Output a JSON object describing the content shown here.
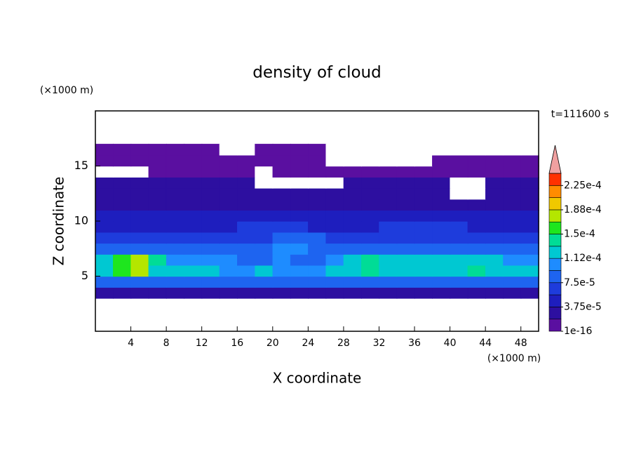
{
  "chart_data": {
    "type": "contour",
    "title": "density of cloud",
    "x_label": "X coordinate",
    "y_label": "Z coordinate",
    "x_unit": "(×1000 m)",
    "y_unit": "(×1000 m)",
    "time_label": "t=111600 s",
    "xlim": [
      0,
      50
    ],
    "ylim": [
      0,
      20
    ],
    "xticks": [
      4,
      8,
      12,
      16,
      20,
      24,
      28,
      32,
      36,
      40,
      44,
      48
    ],
    "yticks": [
      5,
      10,
      15
    ],
    "grid": false,
    "levels": [
      1e-16,
      1.875e-05,
      3.75e-05,
      5.625e-05,
      7.5e-05,
      9.375e-05,
      0.0001125,
      0.00013125,
      0.00015,
      0.00016875,
      0.0001875,
      0.00020625,
      0.000225,
      0.00024375
    ],
    "colors": [
      "#5a0fa0",
      "#2d0fa0",
      "#1e1ebe",
      "#1e3cdc",
      "#1e64f0",
      "#1e8cff",
      "#00c8d2",
      "#00dc96",
      "#1ee61e",
      "#b4e600",
      "#f0c800",
      "#ff8c00",
      "#ff3200"
    ],
    "extend_color": "#f0a0a0",
    "colorbar_ticks": [
      {
        "value": 1e-16,
        "label": "1e-16"
      },
      {
        "value": 3.75e-05,
        "label": "3.75e-5"
      },
      {
        "value": 7.5e-05,
        "label": "7.5e-5"
      },
      {
        "value": 0.0001125,
        "label": "1.12e-4"
      },
      {
        "value": 0.00015,
        "label": "1.5e-4"
      },
      {
        "value": 0.0001875,
        "label": "1.88e-4"
      },
      {
        "value": 0.000225,
        "label": "2.25e-4"
      }
    ],
    "x": [
      1,
      3,
      5,
      7,
      9,
      11,
      13,
      15,
      17,
      19,
      21,
      23,
      25,
      27,
      29,
      31,
      33,
      35,
      37,
      39,
      41,
      43,
      45,
      47,
      49
    ],
    "y": [
      3.5,
      4.5,
      5.5,
      6.5,
      7.5,
      8.5,
      9.5,
      10.5,
      11.5,
      12.5,
      13.5,
      14.5,
      15.5,
      16.5
    ],
    "z": [
      [
        3e-05,
        3e-05,
        3e-05,
        3e-05,
        3e-05,
        3e-05,
        3e-05,
        3e-05,
        3e-05,
        3e-05,
        3e-05,
        3e-05,
        3e-05,
        3e-05,
        3e-05,
        3e-05,
        3e-05,
        3e-05,
        3e-05,
        3e-05,
        3e-05,
        3e-05,
        3e-05,
        3e-05,
        3e-05
      ],
      [
        8e-05,
        8e-05,
        8e-05,
        8e-05,
        8e-05,
        8e-05,
        8e-05,
        8e-05,
        8e-05,
        8e-05,
        8e-05,
        8e-05,
        8e-05,
        8e-05,
        8e-05,
        8e-05,
        8e-05,
        8e-05,
        8e-05,
        8e-05,
        8e-05,
        8e-05,
        8e-05,
        8e-05,
        8e-05
      ],
      [
        0.00013,
        0.00015,
        0.00017,
        0.00013,
        0.00012,
        0.00012,
        0.00012,
        0.00011,
        0.00011,
        0.00012,
        0.00011,
        0.0001,
        0.00011,
        0.00012,
        0.00013,
        0.00014,
        0.00013,
        0.00013,
        0.00013,
        0.00013,
        0.00013,
        0.00014,
        0.00012,
        0.00012,
        0.00012
      ],
      [
        0.00012,
        0.00016,
        0.00018,
        0.00014,
        0.00011,
        0.00011,
        0.00011,
        0.0001,
        9e-05,
        9e-05,
        0.0001,
        9e-05,
        9e-05,
        0.00011,
        0.00013,
        0.00014,
        0.00013,
        0.00012,
        0.00012,
        0.00012,
        0.00013,
        0.00012,
        0.00012,
        0.00011,
        0.00011
      ],
      [
        8e-05,
        8e-05,
        8e-05,
        8e-05,
        8e-05,
        8e-05,
        8e-05,
        8e-05,
        8e-05,
        8e-05,
        0.0001,
        0.0001,
        8e-05,
        8e-05,
        8e-05,
        8e-05,
        8e-05,
        8e-05,
        8e-05,
        8e-05,
        8e-05,
        8e-05,
        8e-05,
        8e-05,
        8e-05
      ],
      [
        6e-05,
        6e-05,
        6e-05,
        6e-05,
        6e-05,
        6e-05,
        6e-05,
        6e-05,
        6e-05,
        6e-05,
        8e-05,
        8e-05,
        8e-05,
        6e-05,
        6e-05,
        6e-05,
        6e-05,
        6e-05,
        6e-05,
        6e-05,
        6e-05,
        6e-05,
        6e-05,
        6e-05,
        6e-05
      ],
      [
        4.5e-05,
        4.5e-05,
        4.5e-05,
        4.5e-05,
        4.5e-05,
        4.5e-05,
        4.5e-05,
        4.5e-05,
        6e-05,
        6e-05,
        6e-05,
        6e-05,
        4.5e-05,
        4.5e-05,
        4.5e-05,
        4.5e-05,
        6e-05,
        6e-05,
        6e-05,
        6e-05,
        6e-05,
        4.5e-05,
        4.5e-05,
        4.5e-05,
        4.5e-05
      ],
      [
        4e-05,
        4e-05,
        4e-05,
        4e-05,
        4e-05,
        4e-05,
        4e-05,
        4e-05,
        4e-05,
        4e-05,
        4e-05,
        4e-05,
        4e-05,
        4e-05,
        4e-05,
        4e-05,
        4e-05,
        4e-05,
        4e-05,
        4e-05,
        4e-05,
        4e-05,
        4e-05,
        4e-05,
        4e-05
      ],
      [
        3e-05,
        3e-05,
        3e-05,
        3e-05,
        3e-05,
        3e-05,
        3e-05,
        3e-05,
        3e-05,
        3e-05,
        3e-05,
        3e-05,
        3e-05,
        3e-05,
        3e-05,
        3e-05,
        3e-05,
        3e-05,
        3e-05,
        3e-05,
        3e-05,
        3e-05,
        3e-05,
        3e-05,
        3e-05
      ],
      [
        2.5e-05,
        2.5e-05,
        2.5e-05,
        2.5e-05,
        2.5e-05,
        2.5e-05,
        2.5e-05,
        2.5e-05,
        2.5e-05,
        2.5e-05,
        2.5e-05,
        2.5e-05,
        2.5e-05,
        2.5e-05,
        2.5e-05,
        2.5e-05,
        2.5e-05,
        2.5e-05,
        2.5e-05,
        2.5e-05,
        0,
        0,
        2.5e-05,
        2.5e-05,
        2.5e-05
      ],
      [
        2e-05,
        2e-05,
        2e-05,
        2e-05,
        2e-05,
        2e-05,
        2e-05,
        2e-05,
        2e-05,
        0,
        0,
        0,
        0,
        0,
        2e-05,
        2e-05,
        2e-05,
        2e-05,
        2e-05,
        2e-05,
        0,
        0,
        2e-05,
        2e-05,
        2e-05
      ],
      [
        0,
        0,
        0,
        1.5e-05,
        1.5e-05,
        1.5e-05,
        1.5e-05,
        1.5e-05,
        1.5e-05,
        0,
        1.5e-05,
        1.5e-05,
        1.5e-05,
        1.5e-05,
        1.2e-05,
        1.2e-05,
        1.2e-05,
        1.2e-05,
        1.2e-05,
        1.2e-05,
        1.2e-05,
        1.2e-05,
        1.2e-05,
        1.2e-05,
        1.2e-05
      ],
      [
        1e-05,
        1e-05,
        1e-05,
        1e-05,
        1e-05,
        1e-05,
        1e-05,
        1e-05,
        1e-05,
        1e-05,
        1e-05,
        1e-05,
        1e-05,
        0,
        0,
        0,
        0,
        0,
        0,
        8e-06,
        8e-06,
        8e-06,
        8e-06,
        8e-06,
        8e-06
      ],
      [
        5e-06,
        5e-06,
        5e-06,
        5e-06,
        5e-06,
        5e-06,
        5e-06,
        0,
        0,
        5e-06,
        5e-06,
        5e-06,
        5e-06,
        0,
        0,
        0,
        0,
        0,
        0,
        0,
        0,
        0,
        0,
        0,
        0
      ]
    ]
  }
}
